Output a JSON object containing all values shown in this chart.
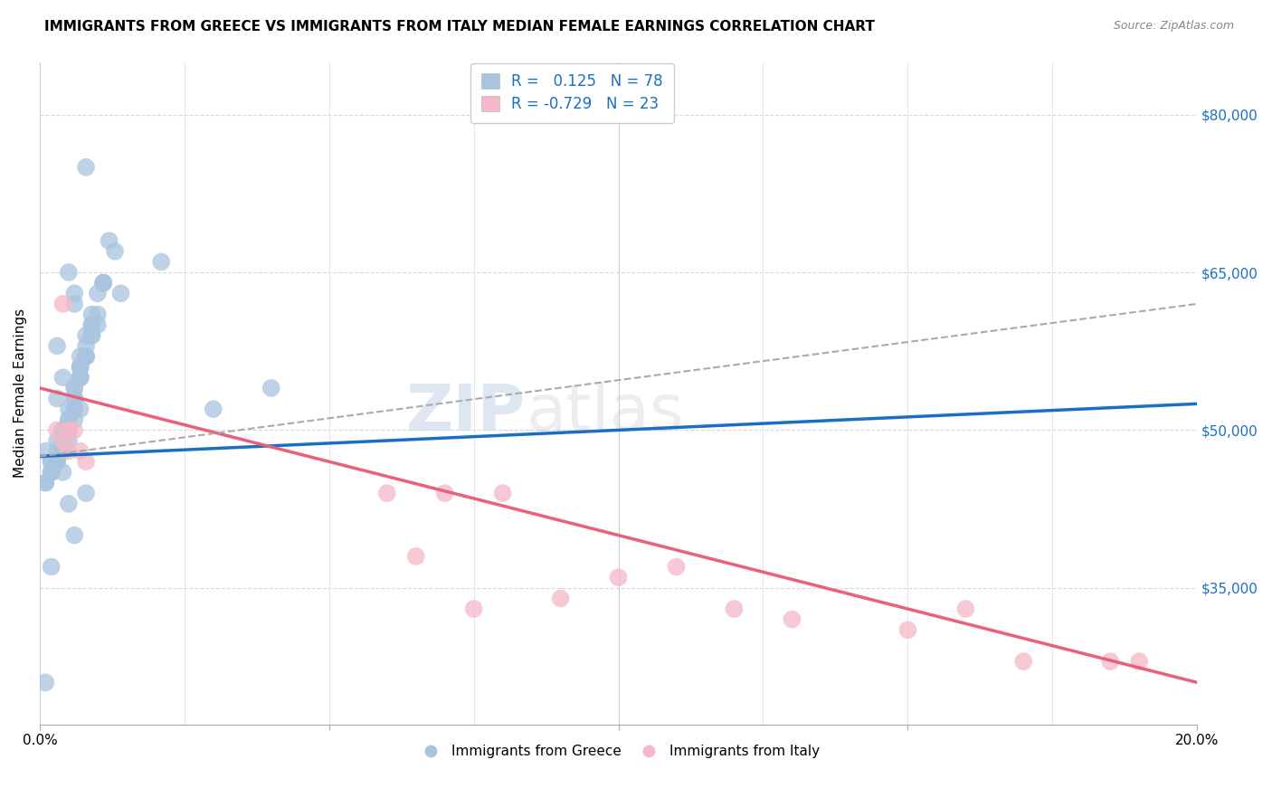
{
  "title": "IMMIGRANTS FROM GREECE VS IMMIGRANTS FROM ITALY MEDIAN FEMALE EARNINGS CORRELATION CHART",
  "source": "Source: ZipAtlas.com",
  "ylabel": "Median Female Earnings",
  "x_min": 0.0,
  "x_max": 0.2,
  "y_min": 22000,
  "y_max": 85000,
  "yticks": [
    35000,
    50000,
    65000,
    80000
  ],
  "ytick_labels": [
    "$35,000",
    "$50,000",
    "$65,000",
    "$80,000"
  ],
  "greece_color": "#a8c4e0",
  "italy_color": "#f4b8c8",
  "greece_line_color": "#1a6fc4",
  "italy_line_color": "#e8607a",
  "trendline_dashed_color": "#aaaaaa",
  "watermark_zip": "ZIP",
  "watermark_atlas": "atlas",
  "R_greece": 0.125,
  "N_greece": 78,
  "R_italy": -0.729,
  "N_italy": 23,
  "greece_scatter_x": [
    0.008,
    0.021,
    0.014,
    0.005,
    0.006,
    0.003,
    0.01,
    0.004,
    0.007,
    0.003,
    0.001,
    0.013,
    0.006,
    0.009,
    0.011,
    0.007,
    0.005,
    0.012,
    0.008,
    0.004,
    0.003,
    0.006,
    0.002,
    0.004,
    0.007,
    0.009,
    0.01,
    0.003,
    0.002,
    0.006,
    0.011,
    0.007,
    0.006,
    0.004,
    0.001,
    0.002,
    0.008,
    0.009,
    0.005,
    0.006,
    0.007,
    0.004,
    0.003,
    0.008,
    0.002,
    0.001,
    0.006,
    0.007,
    0.009,
    0.005,
    0.004,
    0.003,
    0.006,
    0.007,
    0.008,
    0.01,
    0.011,
    0.005,
    0.03,
    0.04,
    0.005,
    0.006,
    0.004,
    0.007,
    0.008,
    0.003,
    0.002,
    0.009,
    0.003,
    0.004,
    0.005,
    0.002,
    0.001,
    0.007,
    0.006,
    0.008,
    0.003,
    0.005
  ],
  "greece_scatter_y": [
    75000,
    66000,
    63000,
    65000,
    62000,
    58000,
    60000,
    55000,
    57000,
    53000,
    48000,
    67000,
    63000,
    59000,
    64000,
    56000,
    52000,
    68000,
    59000,
    50000,
    49000,
    53000,
    47000,
    50000,
    55000,
    60000,
    63000,
    47000,
    46000,
    54000,
    64000,
    56000,
    54000,
    50000,
    45000,
    47000,
    58000,
    61000,
    51000,
    53000,
    56000,
    49000,
    47000,
    57000,
    46000,
    45000,
    52000,
    55000,
    59000,
    50000,
    48000,
    47000,
    52000,
    55000,
    57000,
    61000,
    64000,
    50000,
    52000,
    54000,
    49000,
    51000,
    48000,
    55000,
    57000,
    47000,
    46000,
    60000,
    47000,
    46000,
    43000,
    37000,
    26000,
    52000,
    40000,
    44000,
    48000,
    51000
  ],
  "italy_scatter_x": [
    0.003,
    0.004,
    0.005,
    0.006,
    0.007,
    0.008,
    0.004,
    0.005,
    0.06,
    0.065,
    0.07,
    0.075,
    0.08,
    0.09,
    0.1,
    0.11,
    0.12,
    0.13,
    0.15,
    0.16,
    0.17,
    0.185,
    0.19
  ],
  "italy_scatter_y": [
    50000,
    49000,
    48000,
    50000,
    48000,
    47000,
    62000,
    50000,
    44000,
    38000,
    44000,
    33000,
    44000,
    34000,
    36000,
    37000,
    33000,
    32000,
    31000,
    33000,
    28000,
    28000,
    28000
  ],
  "greece_line_x": [
    0.0,
    0.2
  ],
  "greece_line_y": [
    47500,
    52500
  ],
  "italy_line_x": [
    0.0,
    0.2
  ],
  "italy_line_y": [
    54000,
    26000
  ],
  "dashed_line_x": [
    0.0,
    0.2
  ],
  "dashed_line_y": [
    47500,
    62000
  ],
  "background_color": "#ffffff",
  "grid_color": "#d8d8d8",
  "title_fontsize": 11,
  "axis_label_fontsize": 11,
  "tick_fontsize": 11
}
